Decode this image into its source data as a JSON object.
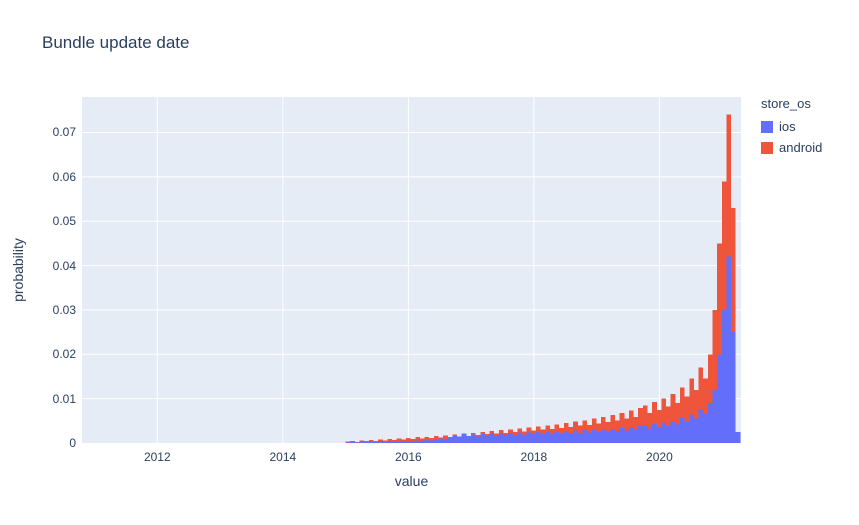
{
  "title": "Bundle update date",
  "legend": {
    "title": "store_os",
    "items": [
      {
        "label": "ios",
        "color": "#636efa"
      },
      {
        "label": "android",
        "color": "#ef553b"
      }
    ]
  },
  "chart_data": {
    "type": "bar",
    "subtype": "histogram-overlay",
    "title": "Bundle update date",
    "xlabel": "value",
    "ylabel": "probability",
    "xlim": [
      2010.8,
      2021.3
    ],
    "ylim": [
      0,
      0.078
    ],
    "x_ticks": [
      2012,
      2014,
      2016,
      2018,
      2020
    ],
    "x_tick_labels": [
      "2012",
      "2014",
      "2016",
      "2018",
      "2020"
    ],
    "y_ticks": [
      0,
      0.01,
      0.02,
      0.03,
      0.04,
      0.05,
      0.06,
      0.07
    ],
    "y_tick_labels": [
      "0",
      "0.01",
      "0.02",
      "0.03",
      "0.04",
      "0.05",
      "0.06",
      "0.07"
    ],
    "plot_bg": "#e5ecf6",
    "grid_color": "#ffffff",
    "grid": true,
    "legend_position": "right-top",
    "bins": {
      "x0": 2015.0,
      "dx": 0.074
    },
    "series": [
      {
        "name": "android",
        "color": "#ef553b",
        "values": [
          0.0003,
          0.0005,
          0.0002,
          0.0006,
          0.0004,
          0.0007,
          0.0005,
          0.0008,
          0.0006,
          0.0009,
          0.0007,
          0.001,
          0.0008,
          0.0011,
          0.0009,
          0.0013,
          0.001,
          0.0014,
          0.0011,
          0.0016,
          0.0012,
          0.0017,
          0.0013,
          0.0019,
          0.0015,
          0.0021,
          0.0016,
          0.0023,
          0.0018,
          0.0025,
          0.002,
          0.0027,
          0.0021,
          0.0029,
          0.0023,
          0.0031,
          0.0025,
          0.0033,
          0.0026,
          0.0035,
          0.0028,
          0.0037,
          0.003,
          0.004,
          0.0032,
          0.0042,
          0.0034,
          0.0045,
          0.0036,
          0.0048,
          0.0039,
          0.0051,
          0.0041,
          0.0055,
          0.0044,
          0.0059,
          0.0047,
          0.0063,
          0.0051,
          0.0068,
          0.0055,
          0.0073,
          0.0059,
          0.0079,
          0.0085,
          0.0068,
          0.0092,
          0.0074,
          0.01,
          0.0082,
          0.011,
          0.009,
          0.0125,
          0.0105,
          0.0145,
          0.012,
          0.017,
          0.0145,
          0.02,
          0.03,
          0.045,
          0.059,
          0.074,
          0.053,
          0.0005
        ]
      },
      {
        "name": "ios",
        "color": "#636efa",
        "values": [
          0.0001,
          0.0002,
          0.0001,
          0.0003,
          0.0002,
          0.0003,
          0.0002,
          0.0004,
          0.0003,
          0.0004,
          0.0003,
          0.0005,
          0.0004,
          0.0005,
          0.0005,
          0.0006,
          0.0005,
          0.0007,
          0.0006,
          0.0008,
          0.001,
          0.0009,
          0.0012,
          0.0018,
          0.0015,
          0.002,
          0.0016,
          0.0019,
          0.0015,
          0.0021,
          0.0016,
          0.0022,
          0.0017,
          0.0022,
          0.0018,
          0.0023,
          0.0018,
          0.0024,
          0.0019,
          0.0024,
          0.002,
          0.0025,
          0.002,
          0.0026,
          0.0021,
          0.0026,
          0.0022,
          0.0027,
          0.0022,
          0.0028,
          0.0023,
          0.0029,
          0.0024,
          0.003,
          0.0025,
          0.0031,
          0.0026,
          0.0032,
          0.0027,
          0.0034,
          0.0028,
          0.0036,
          0.003,
          0.0038,
          0.004,
          0.0033,
          0.0043,
          0.0036,
          0.0046,
          0.0039,
          0.005,
          0.0042,
          0.0056,
          0.0048,
          0.0064,
          0.0055,
          0.0075,
          0.0065,
          0.009,
          0.012,
          0.02,
          0.03,
          0.042,
          0.025,
          0.0025
        ]
      }
    ]
  }
}
